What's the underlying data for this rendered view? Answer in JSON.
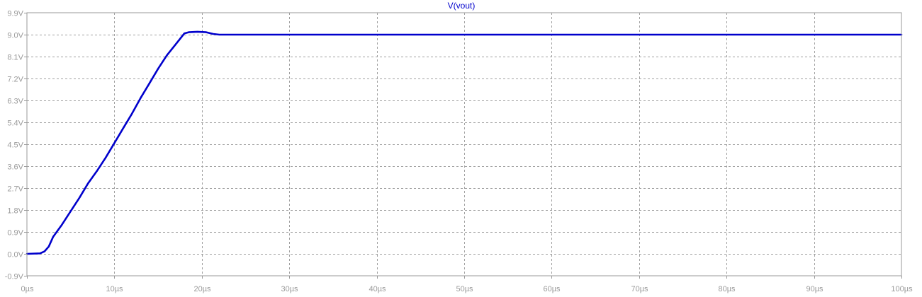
{
  "window": {
    "background": "#ffffff"
  },
  "chart_data": {
    "type": "line",
    "title": "V(vout)",
    "xlabel": "",
    "ylabel": "",
    "xlim": [
      0,
      100
    ],
    "ylim": [
      -0.9,
      9.9
    ],
    "grid": true,
    "grid_style": "dashed",
    "x_ticks": [
      0,
      10,
      20,
      30,
      40,
      50,
      60,
      70,
      80,
      90,
      100
    ],
    "x_tick_labels": [
      "0µs",
      "10µs",
      "20µs",
      "30µs",
      "40µs",
      "50µs",
      "60µs",
      "70µs",
      "80µs",
      "90µs",
      "100µs"
    ],
    "y_ticks": [
      -0.9,
      0.0,
      0.9,
      1.8,
      2.7,
      3.6,
      4.5,
      5.4,
      6.3,
      7.2,
      8.1,
      9.0,
      9.9
    ],
    "y_tick_labels": [
      "-0.9V",
      "0.0V",
      "0.9V",
      "1.8V",
      "2.7V",
      "3.6V",
      "4.5V",
      "5.4V",
      "6.3V",
      "7.2V",
      "8.1V",
      "9.0V",
      "9.9V"
    ],
    "colors": {
      "series": "#0000cc",
      "frame": "#9a9a9a",
      "grid": "#a0a0a0",
      "ticks": "#9a9a9a"
    },
    "series": [
      {
        "name": "V(vout)",
        "x": [
          0,
          1.5,
          2.0,
          2.5,
          3.0,
          4,
          5,
          6,
          7,
          8,
          9,
          10,
          11,
          12,
          13,
          14,
          15,
          16,
          17,
          18,
          18.5,
          19.5,
          20.5,
          21.3,
          22,
          30,
          40,
          50,
          60,
          70,
          80,
          90,
          100
        ],
        "y": [
          0.0,
          0.02,
          0.1,
          0.3,
          0.7,
          1.2,
          1.75,
          2.3,
          2.9,
          3.4,
          3.95,
          4.55,
          5.15,
          5.75,
          6.4,
          7.0,
          7.6,
          8.15,
          8.6,
          9.05,
          9.1,
          9.12,
          9.1,
          9.03,
          9.0,
          9.0,
          9.0,
          9.0,
          9.0,
          9.0,
          9.0,
          9.0,
          9.0
        ]
      }
    ]
  }
}
